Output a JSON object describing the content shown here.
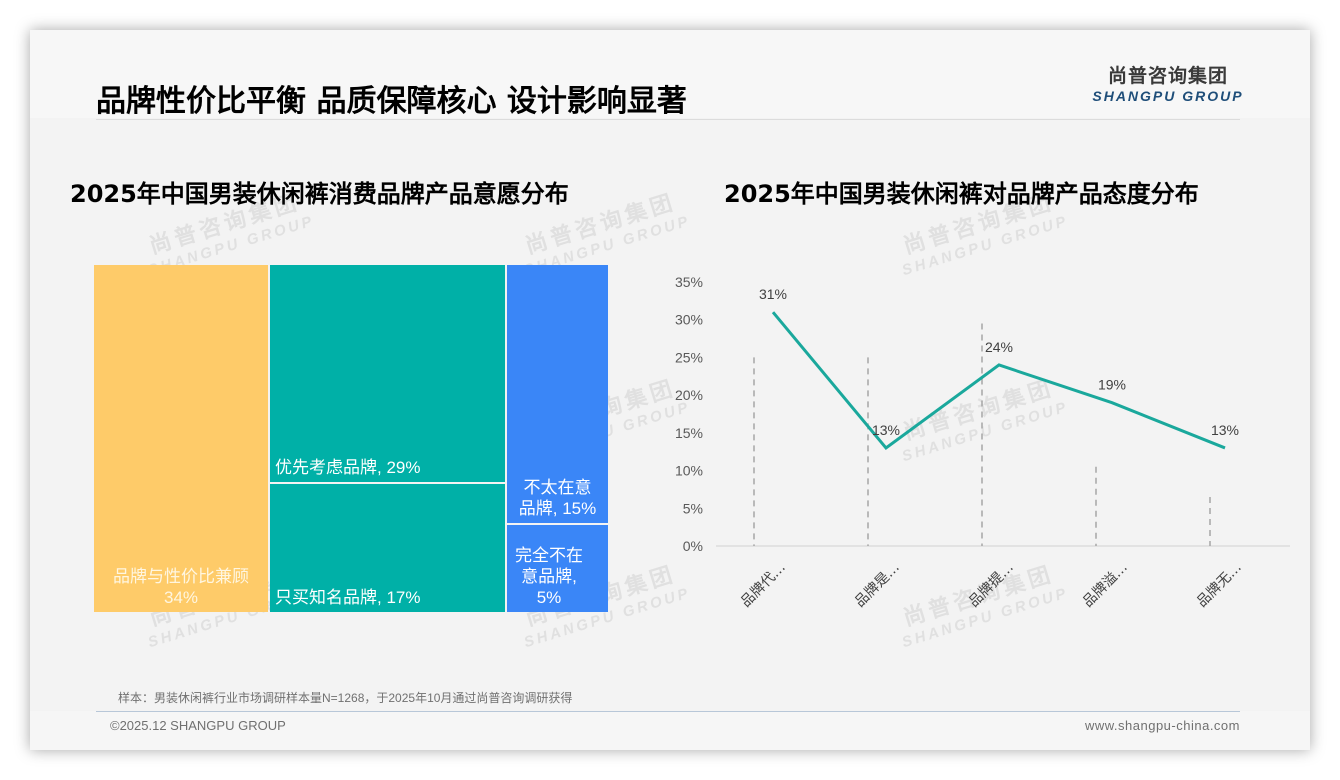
{
  "header": {
    "title": "品牌性价比平衡 品质保障核心 设计影响显著",
    "logo_cn": "尚普咨询集团",
    "logo_en": "SHANGPU GROUP"
  },
  "watermark": {
    "cn": "尚普咨询集团",
    "en": "SHANGPU GROUP"
  },
  "left_chart": {
    "title": "2025年中国男装休闲裤消费品牌产品意愿分布"
  },
  "right_chart": {
    "title": "2025年中国男装休闲裤对品牌产品态度分布"
  },
  "chart_data": [
    {
      "type": "treemap",
      "title": "2025年中国男装休闲裤消费品牌产品意愿分布",
      "categories": [
        "品牌与性价比兼顾",
        "优先考虑品牌",
        "只买知名品牌",
        "不太在意品牌",
        "完全不在意品牌"
      ],
      "values": [
        34,
        29,
        17,
        15,
        5
      ],
      "unit": "%",
      "colors": [
        "#fecb69",
        "#00b0a7",
        "#00b0a7",
        "#3a86f7",
        "#3a86f7"
      ],
      "labels": [
        {
          "line1": "品牌与性价比兼顾",
          "line2": "34%"
        },
        {
          "line1": "优先考虑品牌, 29%"
        },
        {
          "line1": "只买知名品牌, 17%"
        },
        {
          "line1": "不太在意",
          "line2": "品牌, 15%"
        },
        {
          "line1": "完全不在",
          "line2": "意品牌,",
          "line3": "5%"
        }
      ]
    },
    {
      "type": "line",
      "title": "2025年中国男装休闲裤对品牌产品态度分布",
      "categories": [
        "品牌代…",
        "品牌是…",
        "品牌提…",
        "品牌溢…",
        "品牌无…"
      ],
      "values": [
        31,
        13,
        24,
        19,
        13
      ],
      "data_labels": [
        "31%",
        "13%",
        "24%",
        "19%",
        "13%"
      ],
      "xlabel": "",
      "ylabel": "",
      "ylim": [
        0,
        35
      ],
      "yticks": [
        "0%",
        "5%",
        "10%",
        "15%",
        "20%",
        "25%",
        "30%",
        "35%"
      ],
      "line_color": "#1aa89c",
      "grid": false
    }
  ],
  "footer": {
    "note": "样本：男装休闲裤行业市场调研样本量N=1268，于2025年10月通过尚普咨询调研获得",
    "copyright": "©2025.12 SHANGPU GROUP",
    "website": "www.shangpu-china.com"
  }
}
